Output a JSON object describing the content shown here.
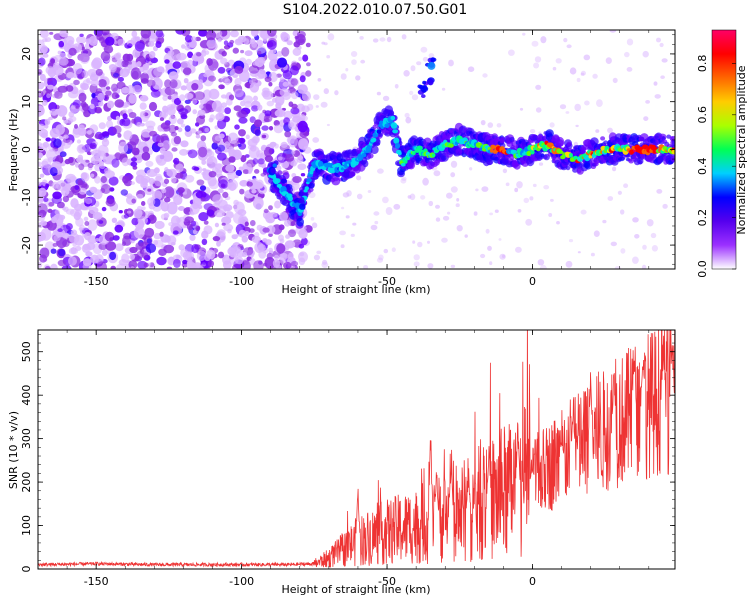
{
  "title": "S104.2022.010.07.50.G01",
  "chart_data": [
    {
      "type": "heatmap",
      "xlabel": "Height of straight line (km)",
      "ylabel": "Frequency (Hz)",
      "xlim": [
        -170,
        49
      ],
      "ylim": [
        -25,
        25
      ],
      "x_ticks": [
        -150,
        -100,
        -50,
        0
      ],
      "y_ticks": [
        -20,
        -10,
        0,
        10,
        20
      ],
      "colorbar": {
        "label": "Normalized spectral amplitude",
        "range": [
          0,
          0.93
        ],
        "ticks": [
          0.0,
          0.2,
          0.4,
          0.6,
          0.8
        ],
        "colors": [
          "#ffffff",
          "#9b30ff",
          "#5500ee",
          "#0000ff",
          "#00cfff",
          "#00ff55",
          "#aaff00",
          "#ffcc00",
          "#ff6600",
          "#ff0000",
          "#ff0066"
        ]
      },
      "ridge_trace": [
        [
          -90,
          -5
        ],
        [
          -80,
          -13
        ],
        [
          -75,
          -3
        ],
        [
          -68,
          -4
        ],
        [
          -62,
          -3
        ],
        [
          -57,
          0
        ],
        [
          -52,
          5
        ],
        [
          -48,
          6
        ],
        [
          -45,
          -3
        ],
        [
          -40,
          0
        ],
        [
          -35,
          -1
        ],
        [
          -30,
          1
        ],
        [
          -25,
          2
        ],
        [
          -20,
          1
        ],
        [
          -15,
          0
        ],
        [
          -10,
          0
        ],
        [
          -5,
          -1
        ],
        [
          0,
          0
        ],
        [
          5,
          1
        ],
        [
          10,
          -1
        ],
        [
          15,
          -2
        ],
        [
          20,
          -1
        ],
        [
          25,
          0
        ],
        [
          30,
          0
        ],
        [
          35,
          0
        ],
        [
          40,
          0
        ],
        [
          45,
          0
        ]
      ],
      "blobs": [
        {
          "x": -38,
          "y": 12
        },
        {
          "x": -36,
          "y": 14
        },
        {
          "x": -35,
          "y": 18
        },
        {
          "x": -89,
          "y": -4
        },
        {
          "x": -80,
          "y": -11
        }
      ],
      "noise_region": {
        "x": [
          -170,
          -77
        ],
        "y": [
          -25,
          25
        ]
      }
    },
    {
      "type": "line",
      "xlabel": "Height of straight line (km)",
      "ylabel": "SNR (10 * v/v)",
      "xlim": [
        -170,
        49
      ],
      "ylim": [
        0,
        550
      ],
      "x_ticks": [
        -150,
        -100,
        -50,
        0
      ],
      "y_ticks": [
        0,
        100,
        200,
        300,
        400,
        500
      ],
      "color": "#ee3333",
      "trend": [
        [
          -170,
          10
        ],
        [
          -150,
          12
        ],
        [
          -130,
          10
        ],
        [
          -100,
          10
        ],
        [
          -85,
          10
        ],
        [
          -75,
          12
        ],
        [
          -70,
          25
        ],
        [
          -65,
          45
        ],
        [
          -60,
          65
        ],
        [
          -50,
          85
        ],
        [
          -40,
          100
        ],
        [
          -30,
          120
        ],
        [
          -25,
          130
        ],
        [
          -15,
          160
        ],
        [
          -5,
          190
        ],
        [
          5,
          230
        ],
        [
          10,
          260
        ],
        [
          20,
          300
        ],
        [
          30,
          340
        ],
        [
          40,
          380
        ],
        [
          49,
          400
        ]
      ],
      "peaks": [
        [
          -60,
          200
        ],
        [
          -35,
          340
        ],
        [
          -33,
          260
        ],
        [
          -28,
          270
        ],
        [
          -22,
          210
        ],
        [
          -15,
          290
        ],
        [
          -5,
          340
        ],
        [
          0,
          230
        ],
        [
          10,
          300
        ],
        [
          14,
          380
        ],
        [
          20,
          480
        ],
        [
          28,
          470
        ],
        [
          35,
          530
        ],
        [
          38,
          520
        ],
        [
          45,
          520
        ],
        [
          48,
          550
        ]
      ]
    }
  ]
}
